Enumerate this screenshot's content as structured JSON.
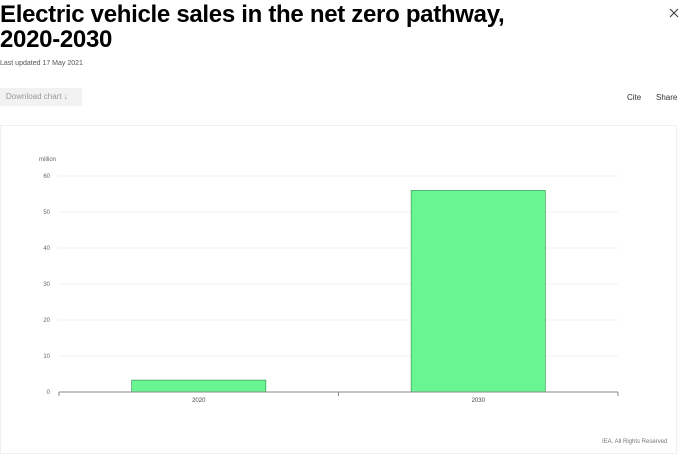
{
  "header": {
    "title": "Electric vehicle sales in the net zero pathway, 2020-2030",
    "last_updated": "Last updated 17 May 2021",
    "close_icon": "close-icon"
  },
  "toolbar": {
    "download_label": "Download chart ↓",
    "cite_label": "Cite",
    "share_label": "Share"
  },
  "chart_data": {
    "type": "bar",
    "title": "Electric vehicle sales in the net zero pathway, 2020-2030",
    "categories": [
      "2020",
      "2030"
    ],
    "values": [
      3.3,
      56
    ],
    "xlabel": "",
    "ylabel": "million",
    "ylim": [
      0,
      60
    ],
    "yticks": [
      0,
      10,
      20,
      30,
      40,
      50,
      60
    ],
    "grid": true,
    "legend": null,
    "bar_color": "#6af593",
    "bar_edge_color": "#3a9c5a"
  },
  "footer": {
    "credit": "IEA. All Rights Reserved"
  }
}
